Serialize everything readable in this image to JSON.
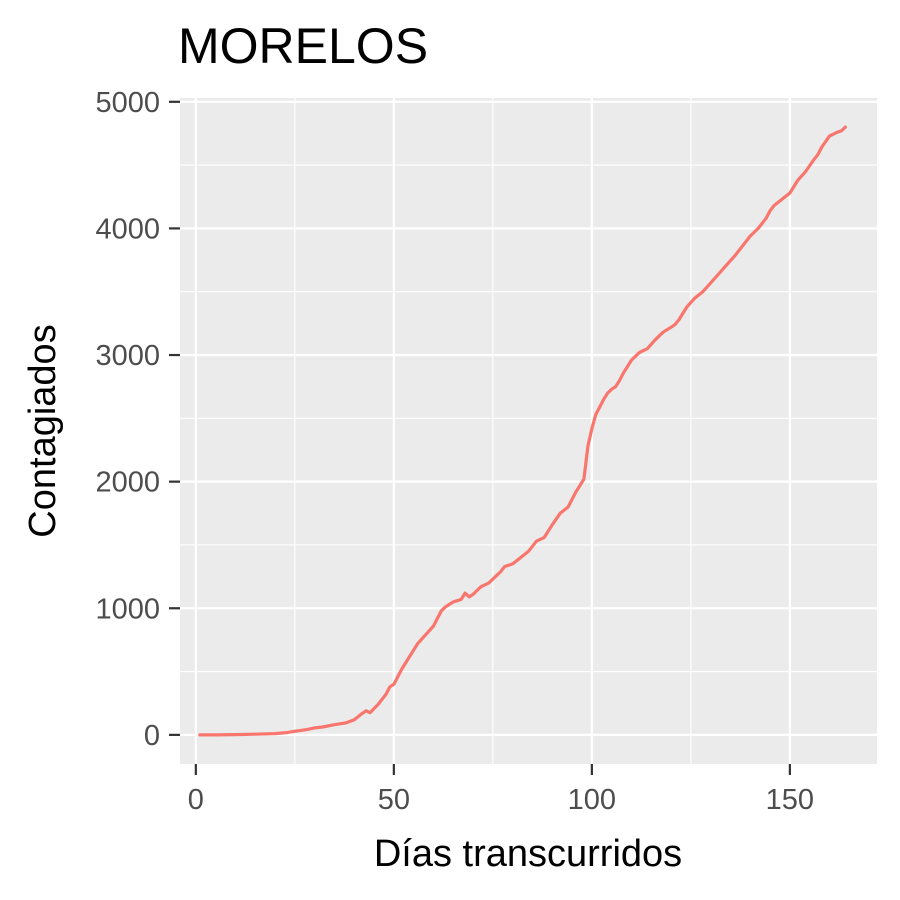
{
  "chart_data": {
    "type": "line",
    "title": "MORELOS",
    "xlabel": "Días transcurridos",
    "ylabel": "Contagiados",
    "xlim": [
      -4,
      172
    ],
    "ylim": [
      -230,
      5030
    ],
    "x_ticks": [
      0,
      50,
      100,
      150
    ],
    "x_tick_labels": [
      "0",
      "50",
      "100",
      "150"
    ],
    "y_ticks": [
      0,
      1000,
      2000,
      3000,
      4000,
      5000
    ],
    "y_tick_labels": [
      "0",
      "1000",
      "2000",
      "3000",
      "4000",
      "5000"
    ],
    "grid": true,
    "legend": "none",
    "background_color": "#ebebeb",
    "grid_color": "#ffffff",
    "series": [
      {
        "color": "#f8766d",
        "x": [
          1,
          5,
          10,
          15,
          20,
          23,
          25,
          28,
          30,
          32,
          35,
          38,
          40,
          42,
          43,
          44,
          46,
          48,
          49,
          50,
          52,
          54,
          56,
          58,
          60,
          61,
          62,
          63,
          65,
          66,
          67,
          68,
          69,
          70,
          71,
          72,
          74,
          76,
          77,
          78,
          80,
          82,
          84,
          85,
          86,
          88,
          90,
          92,
          94,
          96,
          97,
          98,
          99,
          100,
          101,
          102,
          103,
          104,
          105,
          106,
          107,
          108,
          110,
          112,
          114,
          116,
          118,
          120,
          121,
          122,
          124,
          126,
          128,
          130,
          132,
          134,
          136,
          138,
          140,
          142,
          144,
          145,
          146,
          148,
          150,
          152,
          154,
          156,
          157,
          158,
          160,
          162,
          163,
          164
        ],
        "values": [
          0,
          0,
          2,
          5,
          10,
          18,
          28,
          42,
          55,
          62,
          80,
          95,
          120,
          170,
          190,
          175,
          240,
          320,
          380,
          400,
          520,
          620,
          720,
          790,
          860,
          920,
          980,
          1010,
          1050,
          1060,
          1070,
          1120,
          1090,
          1110,
          1140,
          1170,
          1200,
          1260,
          1290,
          1330,
          1350,
          1400,
          1450,
          1490,
          1530,
          1560,
          1660,
          1750,
          1800,
          1920,
          1970,
          2020,
          2280,
          2420,
          2530,
          2590,
          2650,
          2700,
          2730,
          2750,
          2800,
          2860,
          2960,
          3020,
          3050,
          3120,
          3180,
          3220,
          3240,
          3280,
          3380,
          3450,
          3500,
          3570,
          3640,
          3710,
          3780,
          3860,
          3940,
          4000,
          4080,
          4140,
          4180,
          4230,
          4280,
          4380,
          4450,
          4540,
          4580,
          4640,
          4730,
          4760,
          4770,
          4800
        ]
      }
    ]
  }
}
